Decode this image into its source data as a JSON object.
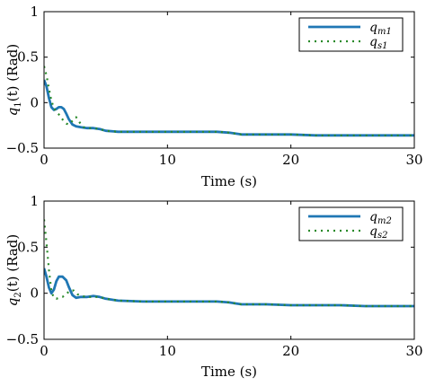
{
  "chart_data": [
    {
      "type": "line",
      "xlabel": "Time (s)",
      "ylabel_var": "q",
      "ylabel_sub": "1",
      "ylabel_rest": "(t) (Rad)",
      "xlim": [
        0,
        30
      ],
      "ylim": [
        -0.5,
        1
      ],
      "xticks": [
        0,
        10,
        20,
        30
      ],
      "yticks": [
        1,
        0.5,
        0,
        -0.5
      ],
      "xtick_labels": [
        "0",
        "10",
        "20",
        "30"
      ],
      "ytick_labels": [
        "1",
        "0.5",
        "0",
        "−0.5"
      ],
      "grid": false,
      "legend_position": "top-right",
      "series": [
        {
          "name_var": "q",
          "name_sub": "m1",
          "style": "solid",
          "color": "#1f77b4",
          "x": [
            0,
            0.2,
            0.4,
            0.6,
            0.8,
            1.0,
            1.2,
            1.4,
            1.6,
            1.8,
            2.0,
            2.3,
            2.6,
            3.0,
            3.5,
            4.0,
            4.5,
            5.0,
            6,
            8,
            10,
            12,
            14,
            15,
            15.5,
            16,
            18,
            20,
            22,
            24,
            26,
            28,
            30
          ],
          "y": [
            0.25,
            0.18,
            0.05,
            -0.05,
            -0.08,
            -0.07,
            -0.05,
            -0.05,
            -0.07,
            -0.12,
            -0.18,
            -0.24,
            -0.26,
            -0.27,
            -0.28,
            -0.28,
            -0.29,
            -0.31,
            -0.32,
            -0.32,
            -0.32,
            -0.32,
            -0.32,
            -0.33,
            -0.34,
            -0.35,
            -0.35,
            -0.35,
            -0.36,
            -0.36,
            -0.36,
            -0.36,
            -0.36
          ]
        },
        {
          "name_var": "q",
          "name_sub": "s1",
          "style": "dotted",
          "color": "#2a8a2a",
          "x": [
            0,
            0.2,
            0.4,
            0.6,
            0.8,
            1.0,
            1.2,
            1.4,
            1.6,
            1.8,
            2.0,
            2.3,
            2.6,
            2.9,
            3.2,
            3.6,
            4.0,
            4.5,
            5.0,
            6,
            8,
            10,
            12,
            14,
            15,
            15.5,
            16,
            18,
            20,
            22,
            24,
            26,
            28,
            30
          ],
          "y": [
            0.4,
            0.3,
            0.15,
            0.02,
            -0.06,
            -0.1,
            -0.13,
            -0.17,
            -0.2,
            -0.23,
            -0.24,
            -0.2,
            -0.16,
            -0.22,
            -0.27,
            -0.28,
            -0.28,
            -0.29,
            -0.31,
            -0.32,
            -0.32,
            -0.32,
            -0.32,
            -0.32,
            -0.33,
            -0.34,
            -0.35,
            -0.35,
            -0.35,
            -0.36,
            -0.36,
            -0.36,
            -0.36,
            -0.36
          ]
        }
      ]
    },
    {
      "type": "line",
      "xlabel": "Time (s)",
      "ylabel_var": "q",
      "ylabel_sub": "2",
      "ylabel_rest": "(t) (Rad)",
      "xlim": [
        0,
        30
      ],
      "ylim": [
        -0.5,
        1
      ],
      "xticks": [
        0,
        10,
        20,
        30
      ],
      "yticks": [
        1,
        0.5,
        0,
        -0.5
      ],
      "xtick_labels": [
        "0",
        "10",
        "20",
        "30"
      ],
      "ytick_labels": [
        "1",
        "0.5",
        "0",
        "−0.5"
      ],
      "grid": false,
      "legend_position": "top-right",
      "series": [
        {
          "name_var": "q",
          "name_sub": "m2",
          "style": "solid",
          "color": "#1f77b4",
          "x": [
            0,
            0.2,
            0.4,
            0.6,
            0.8,
            1.0,
            1.2,
            1.5,
            1.8,
            2.0,
            2.3,
            2.6,
            3.0,
            3.5,
            4.0,
            4.5,
            5.0,
            6,
            8,
            10,
            12,
            14,
            15,
            15.5,
            16,
            18,
            20,
            22,
            24,
            26,
            28,
            30
          ],
          "y": [
            0.27,
            0.18,
            0.06,
            0.0,
            0.04,
            0.13,
            0.18,
            0.18,
            0.14,
            0.07,
            -0.02,
            -0.05,
            -0.04,
            -0.04,
            -0.03,
            -0.04,
            -0.06,
            -0.08,
            -0.09,
            -0.09,
            -0.09,
            -0.09,
            -0.1,
            -0.11,
            -0.12,
            -0.12,
            -0.13,
            -0.13,
            -0.13,
            -0.14,
            -0.14,
            -0.14
          ]
        },
        {
          "name_var": "q",
          "name_sub": "s2",
          "style": "dotted",
          "color": "#2a8a2a",
          "x": [
            0,
            0.2,
            0.4,
            0.6,
            0.8,
            1.0,
            1.2,
            1.5,
            1.8,
            2.1,
            2.4,
            2.7,
            3.0,
            3.5,
            4.0,
            4.5,
            5.0,
            6,
            8,
            10,
            12,
            14,
            15,
            15.5,
            16,
            18,
            20,
            22,
            24,
            26,
            28,
            30
          ],
          "y": [
            0.8,
            0.55,
            0.25,
            0.02,
            -0.05,
            -0.06,
            -0.05,
            -0.04,
            -0.01,
            0.03,
            0.03,
            -0.01,
            -0.03,
            -0.04,
            -0.04,
            -0.04,
            -0.06,
            -0.08,
            -0.09,
            -0.09,
            -0.09,
            -0.09,
            -0.1,
            -0.11,
            -0.12,
            -0.12,
            -0.13,
            -0.13,
            -0.13,
            -0.14,
            -0.14,
            -0.14
          ]
        }
      ]
    }
  ]
}
